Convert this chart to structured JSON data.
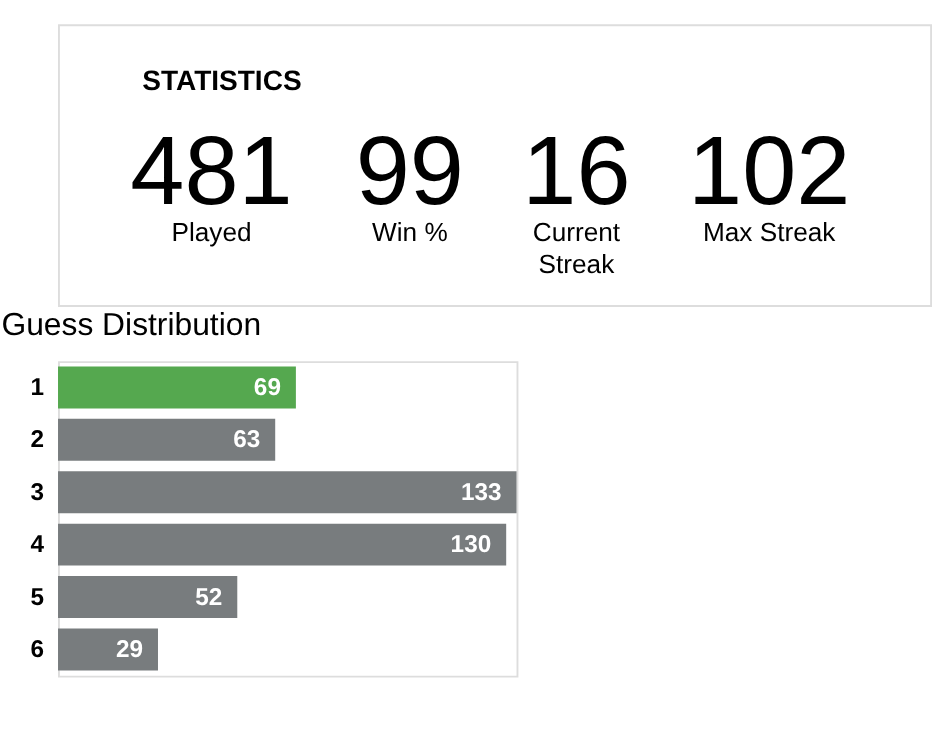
{
  "chart_data": [
    {
      "type": "other",
      "title": "STATISTICS",
      "annotations": [
        "481",
        "Played",
        "99",
        "Win %",
        "16",
        "Current Streak",
        "102",
        "Max Streak"
      ]
    },
    {
      "type": "bar",
      "orientation": "horizontal",
      "title": "Guess Distribution",
      "categories": [
        "1",
        "2",
        "3",
        "4",
        "5",
        "6"
      ],
      "values": [
        69,
        63,
        133,
        130,
        52,
        29
      ],
      "colors": [
        "#55a84f",
        "#787c7e",
        "#787c7e",
        "#787c7e",
        "#787c7e",
        "#787c7e"
      ],
      "data_labels": true
    }
  ]
}
